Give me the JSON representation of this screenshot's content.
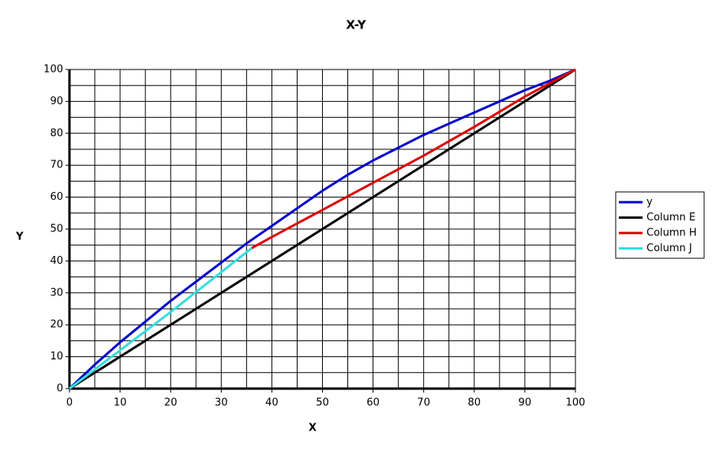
{
  "chart_data": {
    "type": "line",
    "title": "X-Y",
    "x_label": "X",
    "y_label": "Y",
    "xlim": [
      0,
      100
    ],
    "ylim": [
      0,
      100
    ],
    "xticks": [
      0,
      10,
      20,
      30,
      40,
      50,
      60,
      70,
      80,
      90,
      100
    ],
    "yticks": [
      0,
      10,
      20,
      30,
      40,
      50,
      60,
      70,
      80,
      90,
      100
    ],
    "grid": true,
    "minor_grid": true,
    "legend": "right",
    "series": [
      {
        "name": "y",
        "color": "#0000cc",
        "x": [
          0,
          5,
          10,
          15,
          20,
          25,
          30,
          35,
          40,
          45,
          50,
          55,
          60,
          65,
          70,
          75,
          80,
          85,
          90,
          95,
          100
        ],
        "values": [
          0,
          7.5,
          14.5,
          21,
          27.5,
          33.5,
          39.5,
          45.5,
          51,
          56.5,
          62,
          67,
          71.5,
          75.5,
          79.5,
          83,
          86.5,
          90,
          93.5,
          96.5,
          100
        ]
      },
      {
        "name": "Column E",
        "color": "#000000",
        "x": [
          0,
          100
        ],
        "values": [
          0,
          100
        ]
      },
      {
        "name": "Column H",
        "color": "#dd0000",
        "x": [
          36,
          40,
          50,
          60,
          70,
          80,
          90,
          100
        ],
        "values": [
          44,
          47.5,
          56,
          64.5,
          73,
          82,
          91.5,
          100
        ]
      },
      {
        "name": "Column J",
        "color": "#33dddd",
        "x": [
          0,
          10,
          20,
          30,
          36
        ],
        "values": [
          0,
          12,
          24,
          36.5,
          44
        ]
      }
    ]
  }
}
